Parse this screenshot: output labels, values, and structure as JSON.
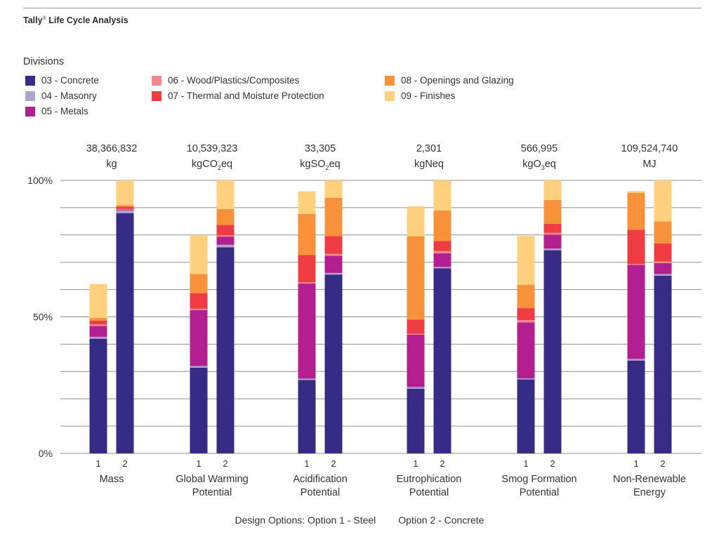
{
  "header": {
    "title": "Tally",
    "title_mark": "®",
    "title_rest": " Life Cycle Analysis"
  },
  "legend": {
    "title": "Divisions",
    "items": [
      {
        "label": "03 - Concrete",
        "color": "#362B85"
      },
      {
        "label": "04 - Masonry",
        "color": "#ABA5D0"
      },
      {
        "label": "05 - Metals",
        "color": "#B31F8F"
      },
      {
        "label": "06 - Wood/Plastics/Composites",
        "color": "#F08A8F"
      },
      {
        "label": "07 - Thermal and Moisture Protection",
        "color": "#EE3C42"
      },
      {
        "label": "08 - Openings and Glazing",
        "color": "#F7923A"
      },
      {
        "label": "09 - Finishes",
        "color": "#FFD07E"
      }
    ]
  },
  "footer": {
    "option1": "Design Options: Option 1 - Steel",
    "option2": "Option 2 - Concrete"
  },
  "chart_data": {
    "type": "bar",
    "stacked": true,
    "ylim": [
      0,
      100
    ],
    "y_ticks": [
      {
        "value": 0,
        "label": "0%"
      },
      {
        "value": 50,
        "label": "50%"
      },
      {
        "value": 100,
        "label": "100%"
      }
    ],
    "grid": true,
    "groups": [
      {
        "name": [
          "Mass"
        ],
        "total": "38,366,832",
        "unit": [
          {
            "t": "kg"
          }
        ],
        "bars": [
          {
            "label": "1",
            "values": [
              42,
              0.7,
              4,
              0.6,
              1.3,
              1,
              12.4
            ]
          },
          {
            "label": "2",
            "values": [
              88,
              1,
              0.3,
              0.2,
              0.9,
              0.5,
              9.1
            ]
          }
        ]
      },
      {
        "name": [
          "Global Warming",
          "Potential"
        ],
        "total": "10,539,323",
        "unit": [
          {
            "t": "kgCO"
          },
          {
            "t": "2",
            "sub": true
          },
          {
            "t": "eq"
          }
        ],
        "bars": [
          {
            "label": "1",
            "values": [
              31.4,
              0.6,
              20.5,
              0.5,
              5.7,
              7,
              14.3
            ]
          },
          {
            "label": "2",
            "values": [
              75.5,
              0.9,
              3,
              0.5,
              3.8,
              5.8,
              10.5
            ]
          }
        ]
      },
      {
        "name": [
          "Acidification",
          "Potential"
        ],
        "total": "33,305",
        "unit": [
          {
            "t": "kgSO"
          },
          {
            "t": "2",
            "sub": true
          },
          {
            "t": "eq"
          }
        ],
        "bars": [
          {
            "label": "1",
            "values": [
              26.9,
              0.5,
              34.8,
              0.5,
              10,
              15,
              8.3
            ]
          },
          {
            "label": "2",
            "values": [
              65.5,
              0.6,
              6.3,
              0.7,
              6.5,
              14,
              6.4
            ]
          }
        ]
      },
      {
        "name": [
          "Eutrophication",
          "Potential"
        ],
        "total": "2,301",
        "unit": [
          {
            "t": "kgNeq"
          }
        ],
        "bars": [
          {
            "label": "1",
            "values": [
              23.7,
              0.6,
              19.2,
              0.3,
              5.2,
              30.5,
              11
            ]
          },
          {
            "label": "2",
            "values": [
              67.8,
              0.5,
              5,
              0.8,
              3.7,
              11.2,
              11
            ]
          }
        ]
      },
      {
        "name": [
          "Smog Formation",
          "Potential"
        ],
        "total": "566,995",
        "unit": [
          {
            "t": "kgO"
          },
          {
            "t": "3",
            "sub": true
          },
          {
            "t": "eq"
          }
        ],
        "bars": [
          {
            "label": "1",
            "values": [
              27.1,
              0.4,
              20.5,
              0.8,
              4.4,
              8.6,
              17.8
            ]
          },
          {
            "label": "2",
            "values": [
              74.4,
              0.6,
              5.1,
              0.7,
              3.3,
              8.7,
              7.2
            ]
          }
        ]
      },
      {
        "name": [
          "Non-Renewable",
          "Energy"
        ],
        "total": "109,524,740",
        "unit": [
          {
            "t": "MJ"
          }
        ],
        "bars": [
          {
            "label": "1",
            "values": [
              34,
              0.6,
              34.5,
              0.3,
              12.5,
              13.5,
              0.7
            ]
          },
          {
            "label": "2",
            "values": [
              65.1,
              0.6,
              4,
              0.6,
              6.6,
              8.1,
              15
            ]
          }
        ]
      }
    ]
  }
}
